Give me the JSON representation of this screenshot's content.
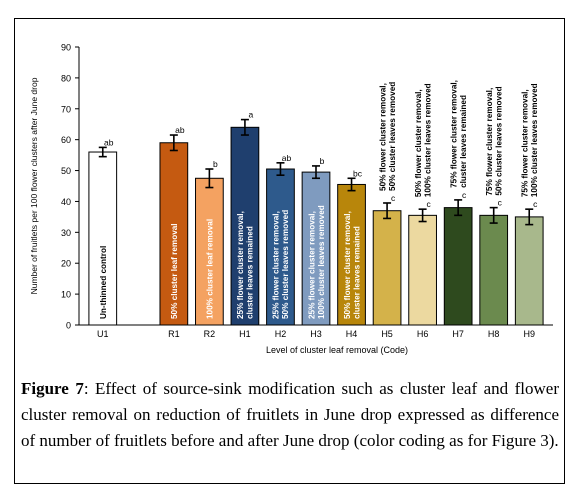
{
  "caption": {
    "label": "Figure 7",
    "text": ": Effect of source-sink modification such as cluster leaf and flower cluster removal on reduction of fruitlets in June drop expressed as difference of number of fruitlets before and after June drop (color coding as for Figure 3)."
  },
  "chart_data": {
    "type": "bar",
    "title": "",
    "xlabel": "Level of cluster leaf removal (Code)",
    "ylabel": "Number of fruitlets per 100 flower clusters after June drop",
    "ylim": [
      0,
      90
    ],
    "yticks": [
      0,
      10,
      20,
      30,
      40,
      50,
      60,
      70,
      80,
      90
    ],
    "grid": false,
    "legend": "none",
    "bars": [
      {
        "code": "U1",
        "value": 56,
        "error": 1.5,
        "letter": "ab",
        "label": "Un-thinned control",
        "color": "#ffffff",
        "text_color": "#000000",
        "gap_before": 0
      },
      {
        "code": "R1",
        "value": 59,
        "error": 2.5,
        "letter": "ab",
        "label": "50% cluster leaf removal",
        "color": "#c55a11",
        "text_color": "#ffffff",
        "gap_before": 1
      },
      {
        "code": "R2",
        "value": 47.5,
        "error": 3,
        "letter": "b",
        "label": "100% cluster leaf removal",
        "color": "#f4a261",
        "text_color": "#ffffff",
        "gap_before": 0
      },
      {
        "code": "H1",
        "value": 64,
        "error": 2.5,
        "letter": "a",
        "label": "25% flower cluster removal, cluster leaves remained",
        "color": "#1f3f6e",
        "text_color": "#ffffff",
        "gap_before": 0
      },
      {
        "code": "H2",
        "value": 50.5,
        "error": 2,
        "letter": "ab",
        "label": "25% flower cluster removal, 50% cluster leaves removed",
        "color": "#2e5a8c",
        "text_color": "#ffffff",
        "gap_before": 0
      },
      {
        "code": "H3",
        "value": 49.5,
        "error": 2,
        "letter": "b",
        "label": "25% flower cluster removal, 100% cluster leaves removed",
        "color": "#7f9bbf",
        "text_color": "#ffffff",
        "gap_before": 0
      },
      {
        "code": "H4",
        "value": 45.5,
        "error": 2,
        "letter": "bc",
        "label": "50% flower cluster removal, cluster leaves remained",
        "color": "#b8860b",
        "text_color": "#ffffff",
        "gap_before": 0
      },
      {
        "code": "H5",
        "value": 37,
        "error": 2.5,
        "letter": "c",
        "label": "50% flower cluster removal, 50% cluster leaves removed",
        "color": "#d4b24a",
        "text_color": "#000000",
        "gap_before": 0
      },
      {
        "code": "H6",
        "value": 35.5,
        "error": 2,
        "letter": "c",
        "label": "50% flower cluster removal, 100% cluster leaves removed",
        "color": "#ecd9a0",
        "text_color": "#000000",
        "gap_before": 0
      },
      {
        "code": "H7",
        "value": 38,
        "error": 2.5,
        "letter": "c",
        "label": "75% flower cluster removal, cluster leaves remained",
        "color": "#2e4a1e",
        "text_color": "#000000",
        "gap_before": 0
      },
      {
        "code": "H8",
        "value": 35.5,
        "error": 2.5,
        "letter": "c",
        "label": "75% flower cluster removal, 50% cluster leaves removed",
        "color": "#6b8a4e",
        "text_color": "#000000",
        "gap_before": 0
      },
      {
        "code": "H9",
        "value": 35,
        "error": 2.5,
        "letter": "c",
        "label": "75% flower cluster removal, 100% cluster leaves removed",
        "color": "#a8b88c",
        "text_color": "#000000",
        "gap_before": 0
      }
    ]
  }
}
